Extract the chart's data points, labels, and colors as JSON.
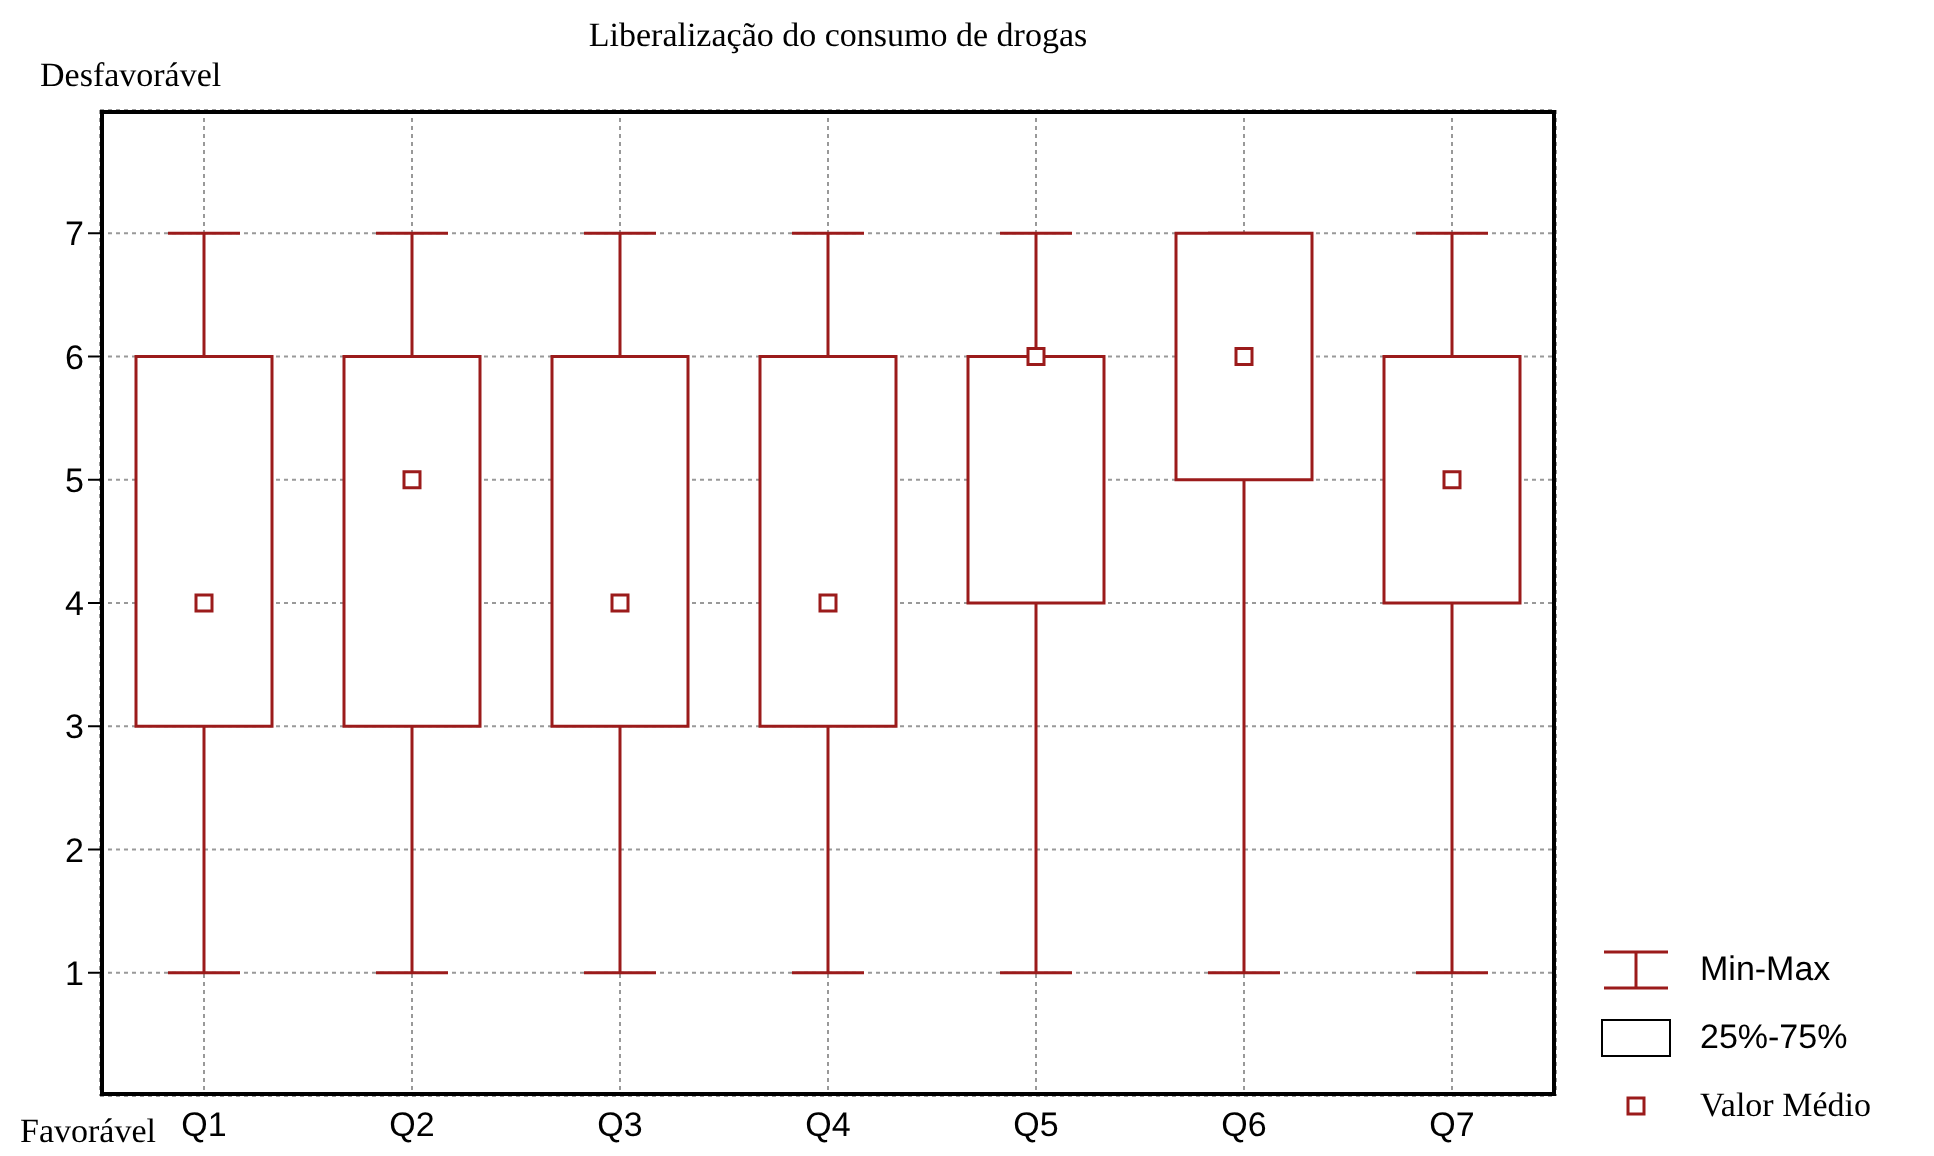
{
  "chart_data": {
    "type": "box",
    "title": "Liberalização do consumo de drogas",
    "categories": [
      "Q1",
      "Q2",
      "Q3",
      "Q4",
      "Q5",
      "Q6",
      "Q7"
    ],
    "boxes": [
      {
        "low": 1,
        "q1": 3,
        "q3": 6,
        "high": 7,
        "mean": 4
      },
      {
        "low": 1,
        "q1": 3,
        "q3": 6,
        "high": 7,
        "mean": 5
      },
      {
        "low": 1,
        "q1": 3,
        "q3": 6,
        "high": 7,
        "mean": 4
      },
      {
        "low": 1,
        "q1": 3,
        "q3": 6,
        "high": 7,
        "mean": 4
      },
      {
        "low": 1,
        "q1": 4,
        "q3": 6,
        "high": 7,
        "mean": 6
      },
      {
        "low": 1,
        "q1": 5,
        "q3": 7,
        "high": 7,
        "mean": 6
      },
      {
        "low": 1,
        "q1": 4,
        "q3": 6,
        "high": 7,
        "mean": 5
      }
    ],
    "color": "#9b1b1b",
    "ylim": [
      0,
      8
    ],
    "yticks": [
      1,
      2,
      3,
      4,
      5,
      6,
      7
    ],
    "grid": true,
    "marker": "square",
    "annotations": [
      "Desfavorável",
      "Favorável",
      "Min-Max",
      "25%-75%",
      "Valor Médio"
    ]
  }
}
